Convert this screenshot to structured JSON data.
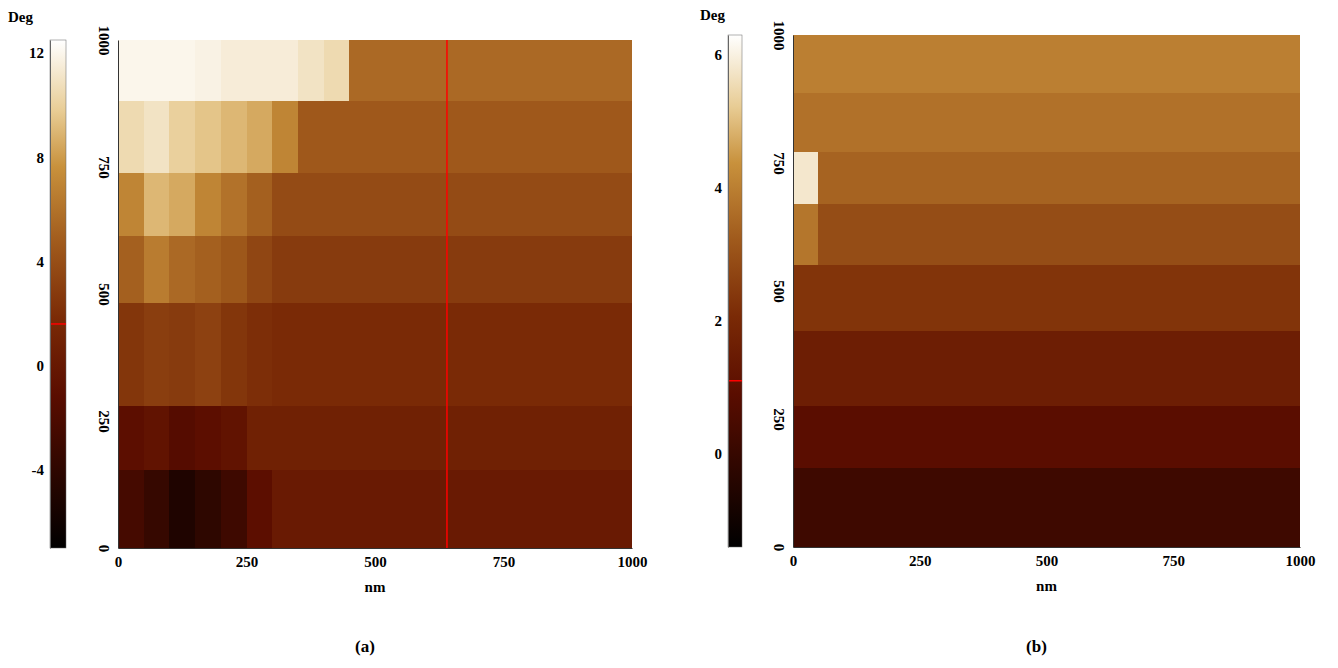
{
  "chart_data": [
    {
      "type": "heatmap",
      "label": "(a)",
      "xlabel": "nm",
      "colorbar_label": "Deg",
      "xlim": [
        0,
        1000
      ],
      "ylim": [
        0,
        1000
      ],
      "xticks": [
        0,
        250,
        500,
        750,
        1000
      ],
      "yticks": [
        0,
        250,
        500,
        750,
        1000
      ],
      "clim": [
        -7,
        12.5
      ],
      "cticks": [
        -4,
        0,
        4,
        8,
        12
      ],
      "cursor_x": 640,
      "colorbar_marker": 1.6,
      "x_edges": [
        0,
        50,
        100,
        150,
        200,
        250,
        300,
        350,
        400,
        450,
        500,
        550,
        600,
        650,
        700,
        750,
        800,
        850,
        900,
        950,
        1000
      ],
      "y_edges": [
        0,
        154,
        281,
        484,
        616,
        740,
        881,
        1000
      ],
      "cells": [
        [
          -2.5,
          -3.5,
          -5,
          -4,
          -3,
          -1,
          0.2,
          0.2,
          0.2,
          0.2,
          0.2,
          0.2,
          0.2,
          0.2,
          0.2,
          0.2,
          0.2,
          0.2,
          0.2,
          0.2
        ],
        [
          -1,
          -0.5,
          -1.5,
          -1,
          -0.5,
          0.9,
          0.9,
          0.9,
          0.9,
          0.9,
          0.9,
          0.9,
          0.9,
          0.9,
          0.9,
          0.9,
          0.9,
          0.9,
          0.9,
          0.9
        ],
        [
          2.5,
          3,
          2.8,
          3.2,
          2.5,
          2,
          1.8,
          1.8,
          1.8,
          1.8,
          1.8,
          1.8,
          1.8,
          1.8,
          1.8,
          1.8,
          1.8,
          1.8,
          1.8,
          1.8
        ],
        [
          5,
          6.5,
          5.5,
          5,
          4.5,
          3.5,
          2.8,
          2.8,
          2.8,
          2.8,
          2.8,
          2.8,
          2.8,
          2.8,
          2.8,
          2.8,
          2.8,
          2.8,
          2.8,
          2.8
        ],
        [
          7,
          9,
          8.5,
          7,
          6,
          5,
          3.8,
          3.8,
          3.8,
          3.8,
          3.8,
          3.8,
          3.8,
          3.8,
          3.8,
          3.8,
          3.8,
          3.8,
          3.8,
          3.8
        ],
        [
          10.5,
          11,
          10,
          9.5,
          9,
          8.5,
          7,
          4.6,
          4.6,
          4.6,
          4.6,
          4.6,
          4.6,
          4.6,
          4.6,
          4.6,
          4.6,
          4.6,
          4.6,
          4.6
        ],
        [
          12,
          12,
          12,
          11.8,
          11.5,
          11.5,
          11.5,
          11,
          10.5,
          5.5,
          5.5,
          5.5,
          5.5,
          5.5,
          5.5,
          5.5,
          5.5,
          5.5,
          5.5,
          5.5
        ]
      ]
    },
    {
      "type": "heatmap",
      "label": "(b)",
      "xlabel": "nm",
      "colorbar_label": "Deg",
      "xlim": [
        0,
        1000
      ],
      "ylim": [
        0,
        1000
      ],
      "xticks": [
        0,
        250,
        500,
        750,
        1000
      ],
      "yticks": [
        0,
        250,
        500,
        750,
        1000
      ],
      "clim": [
        -1.4,
        6.3
      ],
      "cticks": [
        0,
        2,
        4,
        6
      ],
      "colorbar_marker": 1.1,
      "x_edges": [
        0,
        50,
        100,
        150,
        200,
        250,
        300,
        350,
        400,
        450,
        500,
        550,
        600,
        650,
        700,
        750,
        800,
        850,
        900,
        950,
        1000
      ],
      "y_edges": [
        0,
        156,
        277,
        424,
        551,
        672,
        772,
        887,
        1000
      ],
      "cells": [
        [
          0.2,
          0.2,
          0.2,
          0.2,
          0.2,
          0.2,
          0.2,
          0.2,
          0.2,
          0.2,
          0.2,
          0.2,
          0.2,
          0.2,
          0.2,
          0.2,
          0.2,
          0.2,
          0.2,
          0.2
        ],
        [
          0.9,
          0.9,
          0.9,
          0.9,
          0.9,
          0.9,
          0.9,
          0.9,
          0.9,
          0.9,
          0.9,
          0.9,
          0.9,
          0.9,
          0.9,
          0.9,
          0.9,
          0.9,
          0.9,
          0.9
        ],
        [
          1.6,
          1.6,
          1.6,
          1.6,
          1.6,
          1.6,
          1.6,
          1.6,
          1.6,
          1.6,
          1.6,
          1.6,
          1.6,
          1.6,
          1.6,
          1.6,
          1.6,
          1.6,
          1.6,
          1.6
        ],
        [
          2.3,
          2.3,
          2.3,
          2.3,
          2.3,
          2.3,
          2.3,
          2.3,
          2.3,
          2.3,
          2.3,
          2.3,
          2.3,
          2.3,
          2.3,
          2.3,
          2.3,
          2.3,
          2.3,
          2.3
        ],
        [
          3.8,
          2.9,
          2.9,
          2.9,
          2.9,
          2.9,
          2.9,
          2.9,
          2.9,
          2.9,
          2.9,
          2.9,
          2.9,
          2.9,
          2.9,
          2.9,
          2.9,
          2.9,
          2.9,
          2.9
        ],
        [
          5.8,
          3.4,
          3.4,
          3.4,
          3.4,
          3.4,
          3.4,
          3.4,
          3.4,
          3.4,
          3.4,
          3.4,
          3.4,
          3.4,
          3.4,
          3.4,
          3.4,
          3.4,
          3.4,
          3.4
        ],
        [
          3.7,
          3.7,
          3.7,
          3.7,
          3.7,
          3.7,
          3.7,
          3.7,
          3.7,
          3.7,
          3.7,
          3.7,
          3.7,
          3.7,
          3.7,
          3.7,
          3.7,
          3.7,
          3.7,
          3.7
        ],
        [
          4.0,
          4.0,
          4.0,
          4.0,
          4.0,
          4.0,
          4.0,
          4.0,
          4.0,
          4.0,
          4.0,
          4.0,
          4.0,
          4.0,
          4.0,
          4.0,
          4.0,
          4.0,
          4.0,
          4.0
        ]
      ]
    }
  ]
}
